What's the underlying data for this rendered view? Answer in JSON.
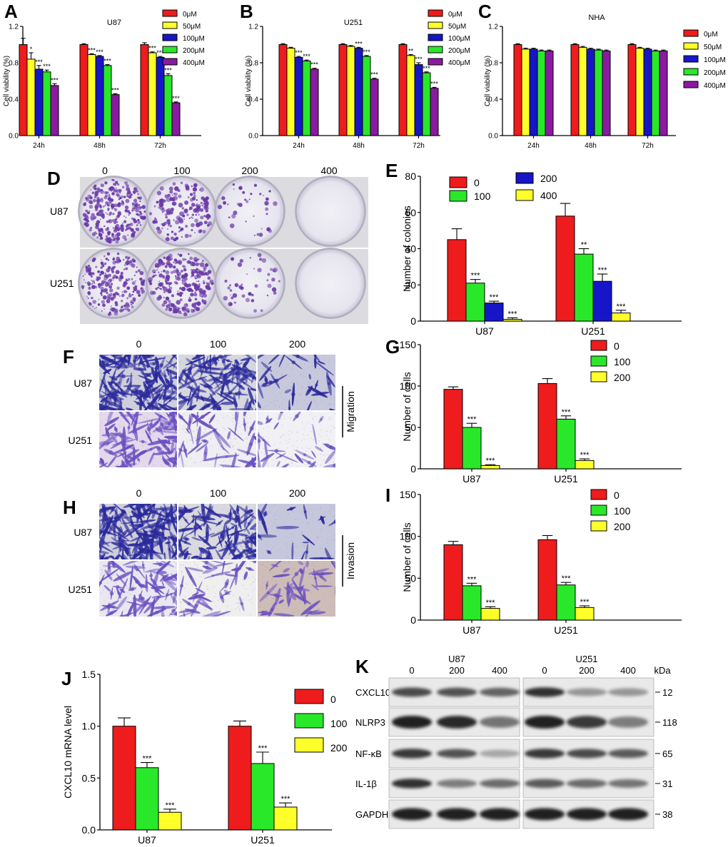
{
  "panels": {
    "A": "A",
    "B": "B",
    "C": "C",
    "D": "D",
    "E": "E",
    "F": "F",
    "G": "G",
    "H": "H",
    "I": "I",
    "J": "J",
    "K": "K"
  },
  "colors": {
    "red": "#ee1c1c",
    "yellow": "#ffff2a",
    "blue": "#1616c8",
    "green": "#29e829",
    "purple": "#8a1aa0",
    "crystal_violet": "#6a3aa8"
  },
  "chart_data": [
    {
      "id": "A",
      "type": "bar",
      "title": "U87",
      "xlabel": "",
      "ylabel": "Cell viability (%)",
      "ylim": [
        0,
        1.2
      ],
      "yticks": [
        "0.0",
        "0.4",
        "0.8",
        "1.2"
      ],
      "grid": false,
      "legend": "right",
      "categories": [
        "24h",
        "48h",
        "72h"
      ],
      "series": [
        {
          "name": "0μM",
          "color": "#ee1c1c",
          "values": [
            1.0,
            1.0,
            1.0
          ],
          "err": [
            0.07,
            0.01,
            0.02
          ],
          "sig": [
            "",
            "",
            ""
          ]
        },
        {
          "name": "50μM",
          "color": "#ffff2a",
          "values": [
            0.84,
            0.89,
            0.91
          ],
          "err": [
            0.07,
            0.01,
            0.01
          ],
          "sig": [
            "*",
            "***",
            "***"
          ]
        },
        {
          "name": "100μM",
          "color": "#1616c8",
          "values": [
            0.73,
            0.87,
            0.86
          ],
          "err": [
            0.04,
            0.01,
            0.01
          ],
          "sig": [
            "***",
            "***",
            "***"
          ]
        },
        {
          "name": "200μM",
          "color": "#29e829",
          "values": [
            0.7,
            0.77,
            0.66
          ],
          "err": [
            0.02,
            0.01,
            0.02
          ],
          "sig": [
            "***",
            "***",
            "***"
          ]
        },
        {
          "name": "400μM",
          "color": "#8a1aa0",
          "values": [
            0.55,
            0.45,
            0.36
          ],
          "err": [
            0.02,
            0.01,
            0.01
          ],
          "sig": [
            "***",
            "***",
            "***"
          ]
        }
      ]
    },
    {
      "id": "B",
      "type": "bar",
      "title": "U251",
      "xlabel": "",
      "ylabel": "Cell viability (%)",
      "ylim": [
        0,
        1.2
      ],
      "yticks": [
        "0.0",
        "0.4",
        "0.8",
        "1.2"
      ],
      "grid": false,
      "legend": "right",
      "categories": [
        "24h",
        "48h",
        "72h"
      ],
      "series": [
        {
          "name": "0μM",
          "color": "#ee1c1c",
          "values": [
            1.0,
            1.0,
            1.0
          ],
          "err": [
            0.01,
            0.01,
            0.01
          ],
          "sig": [
            "",
            "",
            ""
          ]
        },
        {
          "name": "50μM",
          "color": "#ffff2a",
          "values": [
            0.96,
            0.98,
            0.88
          ],
          "err": [
            0.01,
            0.01,
            0.01
          ],
          "sig": [
            "",
            "",
            "**"
          ]
        },
        {
          "name": "100μM",
          "color": "#1616c8",
          "values": [
            0.86,
            0.96,
            0.78
          ],
          "err": [
            0.01,
            0.01,
            0.02
          ],
          "sig": [
            "***",
            "***",
            "***"
          ]
        },
        {
          "name": "200μM",
          "color": "#29e829",
          "values": [
            0.82,
            0.87,
            0.69
          ],
          "err": [
            0.01,
            0.01,
            0.01
          ],
          "sig": [
            "***",
            "***",
            "***"
          ]
        },
        {
          "name": "400μM",
          "color": "#8a1aa0",
          "values": [
            0.73,
            0.62,
            0.52
          ],
          "err": [
            0.01,
            0.01,
            0.01
          ],
          "sig": [
            "***",
            "***",
            "***"
          ]
        }
      ]
    },
    {
      "id": "C",
      "type": "bar",
      "title": "NHA",
      "xlabel": "",
      "ylabel": "Cell viability (%)",
      "ylim": [
        0,
        1.2
      ],
      "yticks": [
        "0.0",
        "0.4",
        "0.8",
        "1.2"
      ],
      "grid": false,
      "legend": "right",
      "categories": [
        "24h",
        "48h",
        "72h"
      ],
      "series": [
        {
          "name": "0μM",
          "color": "#ee1c1c",
          "values": [
            1.0,
            1.0,
            1.0
          ],
          "err": [
            0.01,
            0.01,
            0.01
          ],
          "sig": [
            "",
            "",
            ""
          ]
        },
        {
          "name": "50μM",
          "color": "#ffff2a",
          "values": [
            0.95,
            0.97,
            0.96
          ],
          "err": [
            0.01,
            0.01,
            0.01
          ],
          "sig": [
            "",
            "",
            ""
          ]
        },
        {
          "name": "100μM",
          "color": "#1616c8",
          "values": [
            0.95,
            0.95,
            0.95
          ],
          "err": [
            0.01,
            0.01,
            0.01
          ],
          "sig": [
            "",
            "",
            ""
          ]
        },
        {
          "name": "200μM",
          "color": "#29e829",
          "values": [
            0.93,
            0.94,
            0.93
          ],
          "err": [
            0.01,
            0.01,
            0.01
          ],
          "sig": [
            "",
            "",
            ""
          ]
        },
        {
          "name": "400μM",
          "color": "#8a1aa0",
          "values": [
            0.93,
            0.93,
            0.93
          ],
          "err": [
            0.01,
            0.01,
            0.01
          ],
          "sig": [
            "",
            "",
            ""
          ]
        }
      ]
    },
    {
      "id": "E",
      "type": "bar",
      "title": "",
      "xlabel": "",
      "ylabel": "Number of colonies",
      "ylim": [
        0,
        80
      ],
      "yticks": [
        "0",
        "20",
        "40",
        "60",
        "80"
      ],
      "grid": false,
      "legend": "top",
      "categories": [
        "U87",
        "U251"
      ],
      "series": [
        {
          "name": "0",
          "color": "#ee1c1c",
          "values": [
            45,
            58
          ],
          "err": [
            6,
            7
          ],
          "sig": [
            "",
            ""
          ]
        },
        {
          "name": "100",
          "color": "#29e829",
          "values": [
            21,
            37
          ],
          "err": [
            2,
            3
          ],
          "sig": [
            "***",
            "**"
          ]
        },
        {
          "name": "200",
          "color": "#1616c8",
          "values": [
            10,
            22
          ],
          "err": [
            1,
            4
          ],
          "sig": [
            "***",
            "***"
          ]
        },
        {
          "name": "400",
          "color": "#ffff2a",
          "values": [
            1,
            4.5
          ],
          "err": [
            0.8,
            1.5
          ],
          "sig": [
            "***",
            "***"
          ]
        }
      ]
    },
    {
      "id": "G",
      "type": "bar",
      "title": "",
      "xlabel": "",
      "ylabel": "Number of cells",
      "ylim": [
        0,
        150
      ],
      "yticks": [
        "0",
        "50",
        "100",
        "150"
      ],
      "grid": false,
      "legend": "top-right",
      "categories": [
        "U87",
        "U251"
      ],
      "series": [
        {
          "name": "0",
          "color": "#ee1c1c",
          "values": [
            96,
            103
          ],
          "err": [
            3,
            6
          ],
          "sig": [
            "",
            ""
          ]
        },
        {
          "name": "100",
          "color": "#29e829",
          "values": [
            50,
            60
          ],
          "err": [
            5,
            4
          ],
          "sig": [
            "***",
            "***"
          ]
        },
        {
          "name": "200",
          "color": "#ffff2a",
          "values": [
            4,
            10
          ],
          "err": [
            1,
            2
          ],
          "sig": [
            "***",
            "***"
          ]
        }
      ]
    },
    {
      "id": "I",
      "type": "bar",
      "title": "",
      "xlabel": "",
      "ylabel": "Number of cells",
      "ylim": [
        0,
        150
      ],
      "yticks": [
        "0",
        "50",
        "100",
        "150"
      ],
      "grid": false,
      "legend": "top-right",
      "categories": [
        "U87",
        "U251"
      ],
      "series": [
        {
          "name": "0",
          "color": "#ee1c1c",
          "values": [
            90,
            96
          ],
          "err": [
            4,
            5
          ],
          "sig": [
            "",
            ""
          ]
        },
        {
          "name": "100",
          "color": "#29e829",
          "values": [
            41,
            42
          ],
          "err": [
            3,
            3
          ],
          "sig": [
            "***",
            "***"
          ]
        },
        {
          "name": "200",
          "color": "#ffff2a",
          "values": [
            14,
            15
          ],
          "err": [
            2,
            2
          ],
          "sig": [
            "***",
            "***"
          ]
        }
      ]
    },
    {
      "id": "J",
      "type": "bar",
      "title": "",
      "xlabel": "",
      "ylabel": "CXCL10 mRNA level",
      "ylim": [
        0,
        1.5
      ],
      "yticks": [
        "0.0",
        "0.5",
        "1.0",
        "1.5"
      ],
      "grid": false,
      "legend": "top-right",
      "categories": [
        "U87",
        "U251"
      ],
      "series": [
        {
          "name": "0",
          "color": "#ee1c1c",
          "values": [
            1.0,
            1.0
          ],
          "err": [
            0.08,
            0.05
          ],
          "sig": [
            "",
            ""
          ]
        },
        {
          "name": "100",
          "color": "#29e829",
          "values": [
            0.6,
            0.64
          ],
          "err": [
            0.05,
            0.11
          ],
          "sig": [
            "***",
            "***"
          ]
        },
        {
          "name": "200",
          "color": "#ffff2a",
          "values": [
            0.17,
            0.22
          ],
          "err": [
            0.03,
            0.04
          ],
          "sig": [
            "***",
            "***"
          ]
        }
      ]
    }
  ],
  "D": {
    "columns": [
      "0",
      "100",
      "200",
      "400"
    ],
    "rows": [
      "U87",
      "U251"
    ],
    "colony_density": [
      [
        1.0,
        0.55,
        0.12,
        0.0
      ],
      [
        0.8,
        0.85,
        0.15,
        0.0
      ]
    ]
  },
  "F": {
    "columns": [
      "0",
      "100",
      "200"
    ],
    "rows": [
      "U87",
      "U251"
    ],
    "side": "Migration"
  },
  "H": {
    "columns": [
      "0",
      "100",
      "200"
    ],
    "rows": [
      "U87",
      "U251"
    ],
    "side": "Invasion"
  },
  "K": {
    "groups": [
      {
        "name": "U87",
        "lanes": [
          "0",
          "200",
          "400"
        ]
      },
      {
        "name": "U251",
        "lanes": [
          "0",
          "200",
          "400"
        ]
      }
    ],
    "kda_label": "kDa",
    "proteins": [
      {
        "name": "CXCL10",
        "kda": "12",
        "intensity": [
          0.75,
          0.7,
          0.6,
          0.9,
          0.3,
          0.3
        ]
      },
      {
        "name": "NLRP3",
        "kda": "118",
        "intensity": [
          1.0,
          0.95,
          0.5,
          1.0,
          0.85,
          0.45
        ]
      },
      {
        "name": "NF-κB",
        "kda": "65",
        "intensity": [
          0.85,
          0.7,
          0.2,
          0.85,
          0.75,
          0.65
        ]
      },
      {
        "name": "IL-1β",
        "kda": "31",
        "intensity": [
          0.9,
          0.45,
          0.55,
          0.65,
          0.55,
          0.5
        ]
      },
      {
        "name": "GAPDH",
        "kda": "38",
        "intensity": [
          1.0,
          1.0,
          1.0,
          1.0,
          1.0,
          1.0
        ]
      }
    ]
  }
}
